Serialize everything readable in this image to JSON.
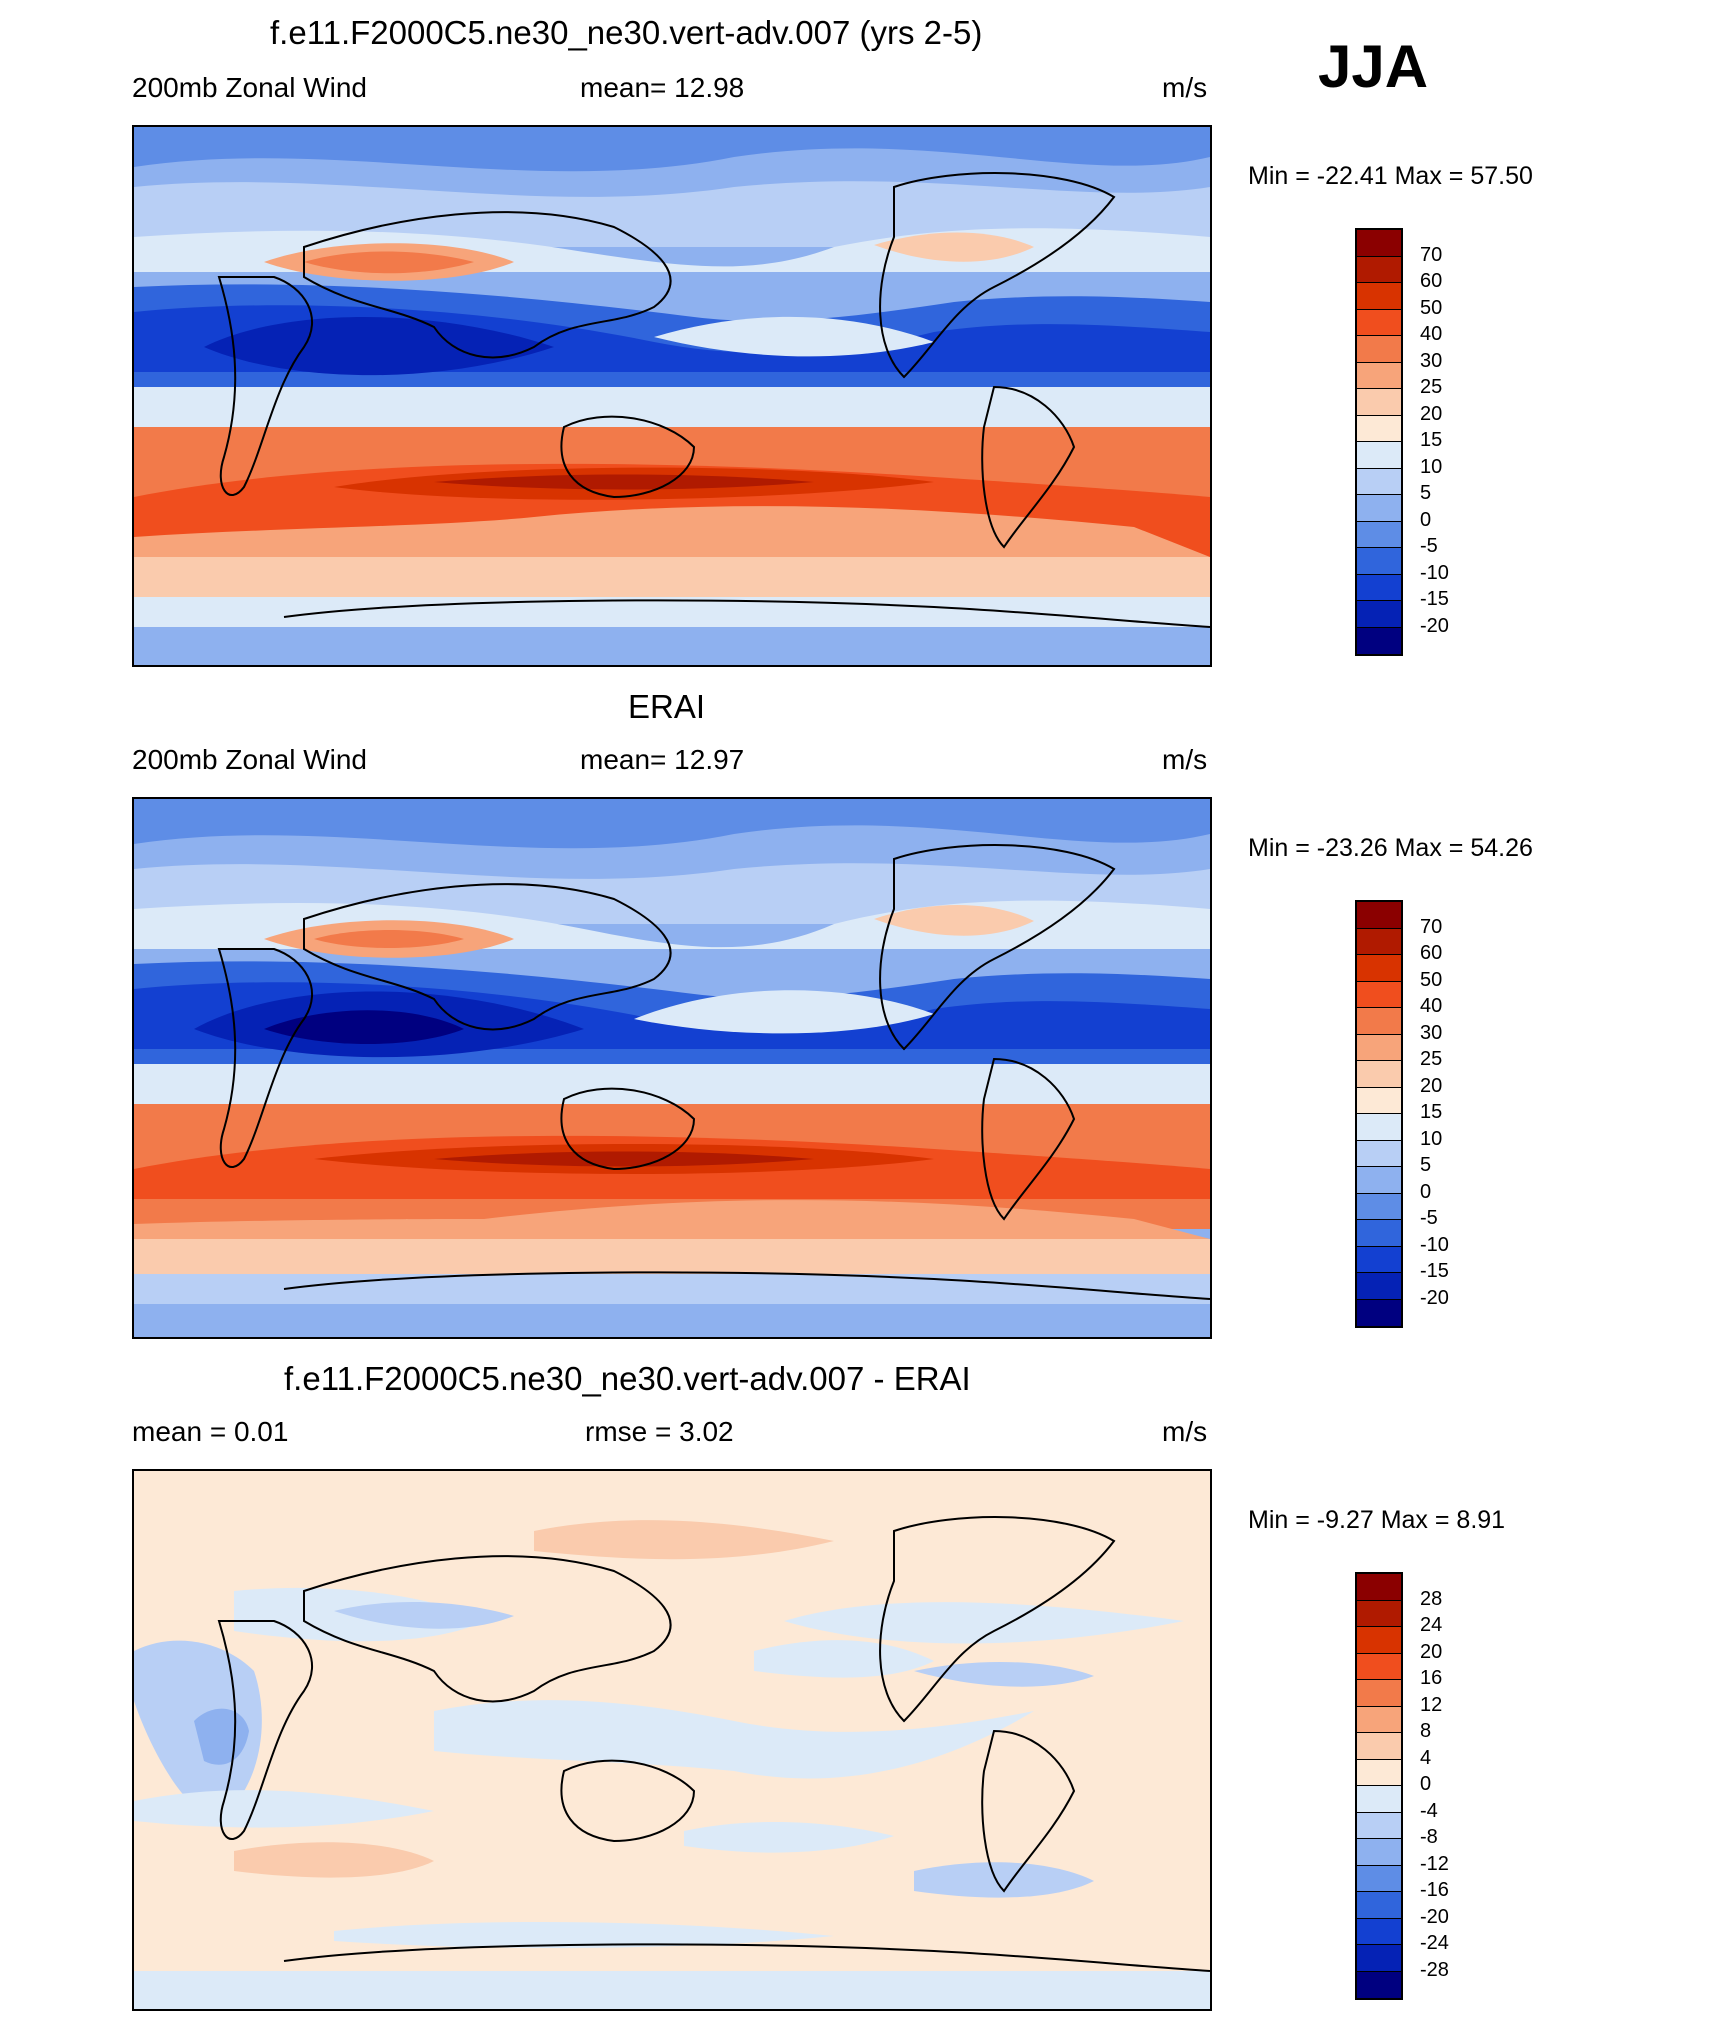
{
  "season": "JJA",
  "panels": [
    {
      "title": "f.e11.F2000C5.ne30_ne30.vert-adv.007 (yrs 2-5)",
      "left_label": "200mb Zonal Wind",
      "center_label": "mean=  12.98",
      "right_label": "m/s",
      "minmax": "Min = -22.41 Max =  57.50"
    },
    {
      "title": "ERAI",
      "left_label": "200mb Zonal Wind",
      "center_label": "mean=  12.97",
      "right_label": "m/s",
      "minmax": "Min = -23.26 Max =  54.26"
    },
    {
      "title": "f.e11.F2000C5.ne30_ne30.vert-adv.007 - ERAI",
      "left_label": "mean =   0.01",
      "center_label": "rmse =   3.02",
      "right_label": "m/s",
      "minmax": "Min =  -9.27 Max =   8.91"
    }
  ],
  "chart_data": [
    {
      "type": "heatmap",
      "title": "f.e11.F2000C5.ne30_ne30.vert-adv.007 (yrs 2-5)",
      "variable": "200mb Zonal Wind",
      "units": "m/s",
      "mean": 12.98,
      "min": -22.41,
      "max": 57.5,
      "colorbar_levels": [
        "70",
        "60",
        "50",
        "40",
        "30",
        "25",
        "20",
        "15",
        "10",
        "5",
        "0",
        "-5",
        "-10",
        "-15",
        "-20"
      ],
      "colorbar_colors": [
        "#8b0000",
        "#b01a00",
        "#d83300",
        "#f04e1e",
        "#f27a4a",
        "#f7a47a",
        "#facbad",
        "#fde9d6",
        "#dceaf8",
        "#b8cff5",
        "#8eb1ef",
        "#5e8de6",
        "#3065dc",
        "#1340d1",
        "#0522b5",
        "#000080"
      ]
    },
    {
      "type": "heatmap",
      "title": "ERAI",
      "variable": "200mb Zonal Wind",
      "units": "m/s",
      "mean": 12.97,
      "min": -23.26,
      "max": 54.26,
      "colorbar_levels": [
        "70",
        "60",
        "50",
        "40",
        "30",
        "25",
        "20",
        "15",
        "10",
        "5",
        "0",
        "-5",
        "-10",
        "-15",
        "-20"
      ],
      "colorbar_colors": [
        "#8b0000",
        "#b01a00",
        "#d83300",
        "#f04e1e",
        "#f27a4a",
        "#f7a47a",
        "#facbad",
        "#fde9d6",
        "#dceaf8",
        "#b8cff5",
        "#8eb1ef",
        "#5e8de6",
        "#3065dc",
        "#1340d1",
        "#0522b5",
        "#000080"
      ]
    },
    {
      "type": "heatmap",
      "title": "f.e11.F2000C5.ne30_ne30.vert-adv.007 - ERAI",
      "units": "m/s",
      "mean": 0.01,
      "rmse": 3.02,
      "min": -9.27,
      "max": 8.91,
      "colorbar_levels": [
        "28",
        "24",
        "20",
        "16",
        "12",
        "8",
        "4",
        "0",
        "-4",
        "-8",
        "-12",
        "-16",
        "-20",
        "-24",
        "-28"
      ],
      "colorbar_colors": [
        "#8b0000",
        "#b01a00",
        "#d83300",
        "#f04e1e",
        "#f27a4a",
        "#f7a47a",
        "#facbad",
        "#fde9d6",
        "#dceaf8",
        "#b8cff5",
        "#8eb1ef",
        "#5e8de6",
        "#3065dc",
        "#1340d1",
        "#0522b5",
        "#000080"
      ]
    }
  ]
}
